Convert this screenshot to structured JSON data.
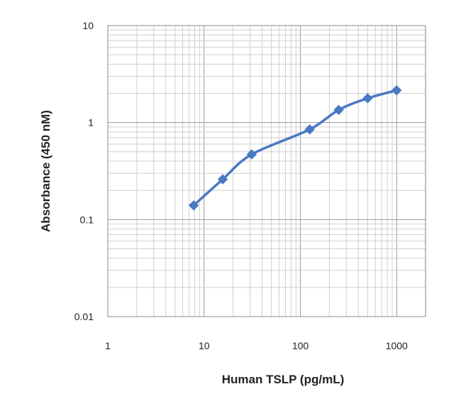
{
  "chart_data": {
    "type": "line",
    "title": "",
    "xlabel": "Human TSLP (pg/mL)",
    "ylabel": "Absorbance (450 nM)",
    "xscale": "log",
    "yscale": "log",
    "xlim": [
      1,
      1000
    ],
    "ylim": [
      0.01,
      10
    ],
    "xticks": [
      "1",
      "10",
      "100",
      "1000"
    ],
    "yticks": [
      "10",
      "1",
      "0.1",
      "0.01"
    ],
    "grid": "major and minor",
    "legend": "none",
    "series": [
      {
        "color": "#4a78c2",
        "marker": "diamond",
        "x": [
          7.8,
          15.6,
          31.25,
          125,
          250,
          500,
          1000
        ],
        "y": [
          0.14,
          0.26,
          0.47,
          0.85,
          1.35,
          1.78,
          2.15
        ]
      }
    ]
  }
}
